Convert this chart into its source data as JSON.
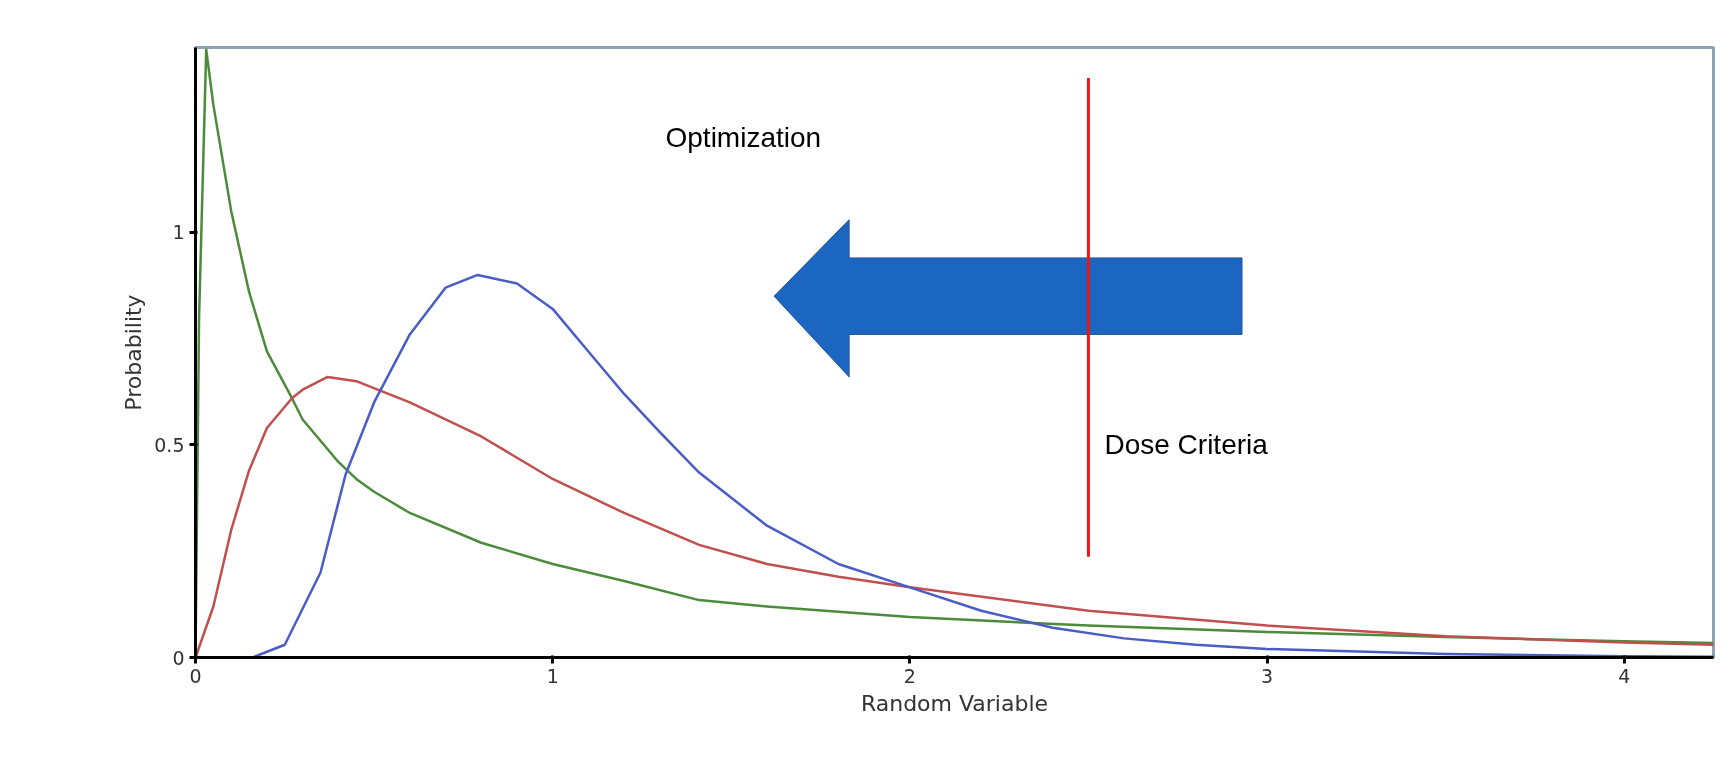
{
  "chart_data": {
    "type": "line",
    "xlabel": "Random Variable",
    "ylabel": "Probability",
    "xlim": [
      0,
      4.25
    ],
    "ylim": [
      0,
      1.435
    ],
    "xticks": [
      0,
      1,
      2,
      3,
      4
    ],
    "yticks": [
      0,
      0.5,
      1
    ],
    "grid": false,
    "marker": "none",
    "line_style": "solid",
    "annotations": [
      "Optimization"
    ],
    "ref_lines": [
      {
        "axis": "x",
        "value": 2.5,
        "label": "Dose Criteria",
        "color": "#e31a1c"
      }
    ],
    "series": [
      {
        "color": "#4b8b3b",
        "x": [
          0,
          0.01,
          0.03,
          0.05,
          0.1,
          0.15,
          0.2,
          0.27,
          0.3,
          0.4,
          0.45,
          0.5,
          0.6,
          0.8,
          1.0,
          1.2,
          1.41,
          1.6,
          2.0,
          2.5,
          3.0,
          3.5,
          4.0,
          4.25
        ],
        "values": [
          0,
          0.8,
          1.43,
          1.3,
          1.05,
          0.86,
          0.72,
          0.61,
          0.56,
          0.46,
          0.42,
          0.39,
          0.34,
          0.27,
          0.22,
          0.18,
          0.135,
          0.12,
          0.095,
          0.075,
          0.06,
          0.048,
          0.038,
          0.034
        ]
      },
      {
        "color": "#c0504d",
        "x": [
          0,
          0.05,
          0.1,
          0.15,
          0.2,
          0.27,
          0.3,
          0.37,
          0.45,
          0.6,
          0.8,
          1.0,
          1.2,
          1.41,
          1.6,
          1.8,
          2.0,
          2.5,
          3.0,
          3.5,
          4.0,
          4.25
        ],
        "values": [
          0,
          0.12,
          0.3,
          0.44,
          0.54,
          0.61,
          0.63,
          0.66,
          0.65,
          0.6,
          0.52,
          0.42,
          0.34,
          0.265,
          0.22,
          0.19,
          0.165,
          0.11,
          0.075,
          0.05,
          0.035,
          0.03
        ]
      },
      {
        "color": "#4a5cc6",
        "x": [
          0.16,
          0.25,
          0.35,
          0.42,
          0.5,
          0.6,
          0.7,
          0.79,
          0.9,
          1.0,
          1.1,
          1.2,
          1.3,
          1.41,
          1.6,
          1.8,
          2.0,
          2.2,
          2.4,
          2.6,
          2.8,
          3.0,
          3.5,
          4.0,
          4.25
        ],
        "values": [
          0,
          0.03,
          0.2,
          0.43,
          0.6,
          0.76,
          0.87,
          0.9,
          0.88,
          0.82,
          0.72,
          0.62,
          0.53,
          0.435,
          0.31,
          0.22,
          0.165,
          0.11,
          0.07,
          0.045,
          0.03,
          0.02,
          0.008,
          0.003,
          0.002
        ]
      }
    ]
  }
}
